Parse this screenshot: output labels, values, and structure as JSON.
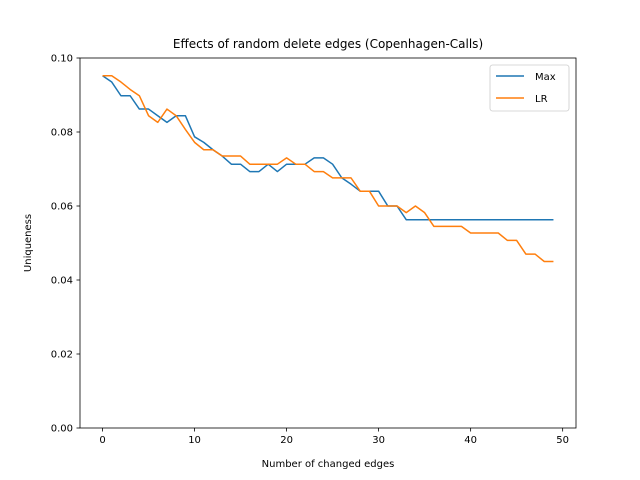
{
  "chart_data": {
    "type": "line",
    "title": "Effects of random delete edges (Copenhagen-Calls)",
    "xlabel": "Number of changed edges",
    "ylabel": "Uniqueness",
    "xlim": [
      -2.45,
      51.45
    ],
    "ylim": [
      0.0,
      0.1
    ],
    "xticks": [
      0,
      10,
      20,
      30,
      40,
      50
    ],
    "yticks": [
      0.0,
      0.02,
      0.04,
      0.06,
      0.08,
      0.1
    ],
    "xtick_labels": [
      "0",
      "10",
      "20",
      "30",
      "40",
      "50"
    ],
    "ytick_labels": [
      "0.00",
      "0.02",
      "0.04",
      "0.06",
      "0.08",
      "0.10"
    ],
    "grid": false,
    "legend_position": "top-right",
    "x": [
      0,
      1,
      2,
      3,
      4,
      5,
      6,
      7,
      8,
      9,
      10,
      11,
      12,
      13,
      14,
      15,
      16,
      17,
      18,
      19,
      20,
      21,
      22,
      23,
      24,
      25,
      26,
      27,
      28,
      29,
      30,
      31,
      32,
      33,
      34,
      35,
      36,
      37,
      38,
      39,
      40,
      41,
      42,
      43,
      44,
      45,
      46,
      47,
      48,
      49
    ],
    "series": [
      {
        "name": "Max",
        "color": "#1f77b4",
        "values": [
          0.0952,
          0.0935,
          0.0898,
          0.0898,
          0.0862,
          0.0862,
          0.0844,
          0.0826,
          0.0844,
          0.0844,
          0.0787,
          0.0772,
          0.0752,
          0.0735,
          0.0713,
          0.0713,
          0.0693,
          0.0693,
          0.0713,
          0.0693,
          0.0713,
          0.0713,
          0.0713,
          0.073,
          0.073,
          0.0713,
          0.0676,
          0.0659,
          0.064,
          0.064,
          0.064,
          0.06,
          0.06,
          0.0563,
          0.0563,
          0.0563,
          0.0563,
          0.0563,
          0.0563,
          0.0563,
          0.0563,
          0.0563,
          0.0563,
          0.0563,
          0.0563,
          0.0563,
          0.0563,
          0.0563,
          0.0563,
          0.0563
        ]
      },
      {
        "name": "LR",
        "color": "#ff7f0e",
        "values": [
          0.0952,
          0.0952,
          0.0935,
          0.0915,
          0.0898,
          0.0844,
          0.0826,
          0.0862,
          0.0844,
          0.0807,
          0.0772,
          0.0752,
          0.0752,
          0.0735,
          0.0735,
          0.0735,
          0.0713,
          0.0713,
          0.0713,
          0.0713,
          0.073,
          0.0713,
          0.0713,
          0.0693,
          0.0693,
          0.0676,
          0.0676,
          0.0676,
          0.064,
          0.064,
          0.06,
          0.06,
          0.06,
          0.0582,
          0.06,
          0.0582,
          0.0545,
          0.0545,
          0.0545,
          0.0545,
          0.0527,
          0.0527,
          0.0527,
          0.0527,
          0.0507,
          0.0507,
          0.047,
          0.047,
          0.045,
          0.045
        ]
      }
    ]
  }
}
